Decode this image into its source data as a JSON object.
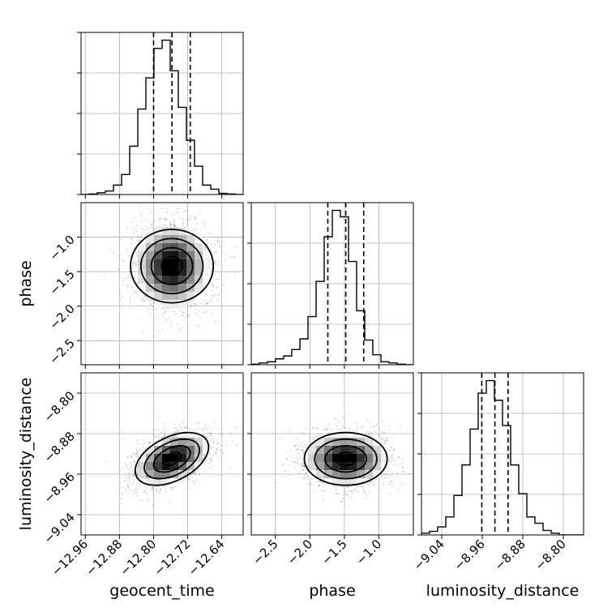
{
  "chart_data": {
    "type": "corner",
    "parameters": [
      "geocent_time",
      "phase",
      "luminosity_distance"
    ],
    "axis_labels": {
      "geocent_time": "geocent_time",
      "phase": "phase",
      "luminosity_distance": "luminosity_distance"
    },
    "ranges": {
      "geocent_time": [
        -12.97,
        -12.59
      ],
      "phase": [
        -2.85,
        -0.5
      ],
      "luminosity_distance": [
        -9.08,
        -8.76
      ]
    },
    "ticks": {
      "geocent_time": [
        -12.96,
        -12.88,
        -12.8,
        -12.72,
        -12.64
      ],
      "phase": [
        -2.5,
        -2.0,
        -1.5,
        -1.0
      ],
      "luminosity_distance": [
        -9.04,
        -8.96,
        -8.88,
        -8.8
      ]
    },
    "tick_labels": {
      "geocent_time": [
        "−12.96",
        "−12.88",
        "−12.80",
        "−12.72",
        "−12.64"
      ],
      "phase": [
        "−2.5",
        "−2.0",
        "−1.5",
        "−1.0"
      ],
      "luminosity_distance": [
        "−9.04",
        "−8.96",
        "−8.88",
        "−8.80"
      ]
    },
    "quantiles": {
      "geocent_time": [
        -12.8,
        -12.757,
        -12.714
      ],
      "phase": [
        -1.74,
        -1.48,
        -1.22
      ],
      "luminosity_distance": [
        -8.961,
        -8.935,
        -8.909
      ]
    },
    "histograms": {
      "geocent_time": {
        "bin_edges": [
          -12.97,
          -12.951,
          -12.932,
          -12.913,
          -12.894,
          -12.875,
          -12.856,
          -12.837,
          -12.818,
          -12.799,
          -12.78,
          -12.761,
          -12.742,
          -12.723,
          -12.704,
          -12.685,
          -12.666,
          -12.647,
          -12.628,
          -12.609,
          -12.59
        ],
        "counts": [
          0,
          1,
          3,
          6,
          16,
          34,
          82,
          145,
          198,
          248,
          262,
          210,
          148,
          92,
          48,
          16,
          9,
          2,
          1,
          0
        ]
      },
      "phase": {
        "bin_edges": [
          -2.85,
          -2.733,
          -2.615,
          -2.498,
          -2.38,
          -2.263,
          -2.145,
          -2.028,
          -1.91,
          -1.793,
          -1.675,
          -1.558,
          -1.44,
          -1.323,
          -1.205,
          -1.088,
          -0.97,
          -0.853,
          -0.735,
          -0.618,
          -0.5
        ],
        "counts": [
          1,
          3,
          5,
          10,
          15,
          26,
          44,
          82,
          142,
          218,
          263,
          252,
          176,
          92,
          42,
          17,
          5,
          3,
          1,
          0
        ]
      },
      "luminosity_distance": {
        "bin_edges": [
          -9.08,
          -9.064,
          -9.048,
          -9.032,
          -9.016,
          -9.0,
          -8.984,
          -8.968,
          -8.952,
          -8.936,
          -8.92,
          -8.904,
          -8.888,
          -8.872,
          -8.856,
          -8.84,
          -8.824,
          -8.808,
          -8.792,
          -8.776,
          -8.76
        ],
        "counts": [
          2,
          4,
          9,
          20,
          44,
          78,
          118,
          158,
          172,
          150,
          122,
          78,
          46,
          20,
          13,
          5,
          2,
          0,
          0,
          0
        ]
      }
    },
    "contours_2d": {
      "phase_vs_geocent_time": {
        "center": [
          -12.757,
          -1.42
        ],
        "sigma": [
          0.043,
          0.3
        ],
        "correlation": 0.0
      },
      "luminosity_distance_vs_geocent_time": {
        "center": [
          -12.757,
          -8.93
        ],
        "sigma": [
          0.043,
          0.026
        ],
        "correlation": 0.45
      },
      "luminosity_distance_vs_phase": {
        "center": [
          -1.48,
          -8.93
        ],
        "sigma": [
          0.3,
          0.026
        ],
        "correlation": 0.0
      }
    },
    "grid": true,
    "title": ""
  }
}
